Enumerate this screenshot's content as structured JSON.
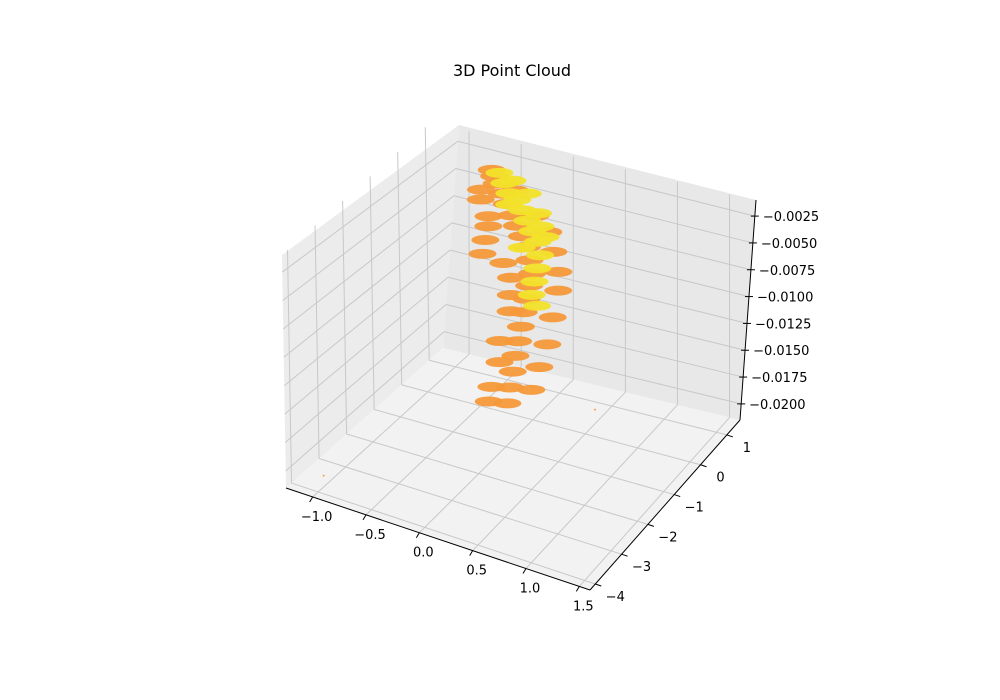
{
  "chart_data": {
    "type": "scatter",
    "projection": "3d",
    "title": "3D Point Cloud",
    "xlabel": "",
    "ylabel": "",
    "zlabel": "",
    "x_ticks": [
      "−1.0",
      "−0.5",
      "0.0",
      "0.5",
      "1.0",
      "1.5"
    ],
    "y_ticks": [
      "−4",
      "−3",
      "−2",
      "−1",
      "0",
      "1"
    ],
    "z_ticks": [
      "−0.0025",
      "−0.0050",
      "−0.0075",
      "−0.0100",
      "−0.0125",
      "−0.0150",
      "−0.0175",
      "−0.0200"
    ],
    "xlim": [
      -1.25,
      1.6
    ],
    "ylim": [
      -4.2,
      1.5
    ],
    "zlim": [
      -0.0215,
      -0.001
    ],
    "grid": true,
    "colors": {
      "orange": "#f5993a",
      "yellow": "#f2e22a",
      "pane": "#f2f2f2",
      "grid": "#c8c8c8"
    },
    "series": [
      {
        "color": "orange",
        "points": [
          {
            "x": -0.6,
            "y": 0.8,
            "z": -0.0028
          },
          {
            "x": -0.55,
            "y": 0.7,
            "z": -0.003
          },
          {
            "x": -0.5,
            "y": 0.6,
            "z": -0.0033
          },
          {
            "x": -0.4,
            "y": 0.4,
            "z": -0.0035
          },
          {
            "x": -0.3,
            "y": 0.2,
            "z": -0.0037
          },
          {
            "x": -0.2,
            "y": 0.0,
            "z": -0.004
          },
          {
            "x": -0.1,
            "y": -0.2,
            "z": -0.0042
          },
          {
            "x": 0.0,
            "y": -0.4,
            "z": -0.0044
          },
          {
            "x": 0.1,
            "y": -0.6,
            "z": -0.0046
          },
          {
            "x": 0.2,
            "y": -0.9,
            "z": -0.0048
          },
          {
            "x": 0.3,
            "y": -1.2,
            "z": -0.005
          },
          {
            "x": 0.35,
            "y": -1.5,
            "z": -0.0052
          },
          {
            "x": 0.4,
            "y": -1.8,
            "z": -0.0055
          },
          {
            "x": 0.45,
            "y": -2.1,
            "z": -0.0058
          },
          {
            "x": 0.5,
            "y": -2.4,
            "z": -0.0062
          },
          {
            "x": 0.55,
            "y": -2.7,
            "z": -0.0066
          },
          {
            "x": 0.6,
            "y": -3.0,
            "z": -0.007
          },
          {
            "x": 0.65,
            "y": -3.3,
            "z": -0.0075
          },
          {
            "x": 0.7,
            "y": -3.6,
            "z": -0.008
          },
          {
            "x": 0.75,
            "y": -3.9,
            "z": -0.0085
          },
          {
            "x": -0.5,
            "y": 0.3,
            "z": -0.0055
          },
          {
            "x": -0.45,
            "y": 0.1,
            "z": -0.0058
          },
          {
            "x": -0.4,
            "y": -0.2,
            "z": -0.0062
          },
          {
            "x": -0.35,
            "y": -0.5,
            "z": -0.0066
          },
          {
            "x": -0.1,
            "y": -0.7,
            "z": -0.0063
          },
          {
            "x": 0.05,
            "y": -1.0,
            "z": -0.0065
          },
          {
            "x": 0.15,
            "y": -1.4,
            "z": -0.0068
          },
          {
            "x": 0.25,
            "y": -1.8,
            "z": -0.007
          },
          {
            "x": -0.65,
            "y": 0.6,
            "z": -0.0042
          },
          {
            "x": -0.6,
            "y": 0.4,
            "z": -0.0045
          },
          {
            "x": -0.3,
            "y": 0.5,
            "z": -0.0032
          },
          {
            "x": 0.0,
            "y": 0.1,
            "z": -0.0038
          },
          {
            "x": 0.2,
            "y": -0.2,
            "z": -0.004
          },
          {
            "x": 0.35,
            "y": -0.6,
            "z": -0.0044
          },
          {
            "x": 0.5,
            "y": -1.0,
            "z": -0.0048
          },
          {
            "x": 0.6,
            "y": -1.4,
            "z": -0.0052
          },
          {
            "x": 0.7,
            "y": -2.0,
            "z": -0.0058
          },
          {
            "x": 0.8,
            "y": -2.6,
            "z": -0.0064
          },
          {
            "x": 0.85,
            "y": -3.1,
            "z": -0.007
          },
          {
            "x": 0.9,
            "y": -3.6,
            "z": -0.0076
          },
          {
            "x": 0.5,
            "y": -3.5,
            "z": -0.0088
          },
          {
            "x": 0.55,
            "y": -3.8,
            "z": -0.0092
          },
          {
            "x": 0.35,
            "y": -2.6,
            "z": -0.0074
          },
          {
            "x": 0.45,
            "y": -3.0,
            "z": -0.008
          },
          {
            "x": 1.2,
            "y": -2.4,
            "z": -0.0115
          },
          {
            "x": -1.0,
            "y": -3.8,
            "z": -0.0205
          }
        ]
      },
      {
        "color": "yellow",
        "points": [
          {
            "x": -0.5,
            "y": 0.7,
            "z": -0.0026
          },
          {
            "x": -0.4,
            "y": 0.5,
            "z": -0.0028
          },
          {
            "x": -0.3,
            "y": 0.3,
            "z": -0.003
          },
          {
            "x": -0.2,
            "y": 0.2,
            "z": -0.0031
          },
          {
            "x": -0.1,
            "y": 0.0,
            "z": -0.0033
          },
          {
            "x": 0.0,
            "y": -0.2,
            "z": -0.0035
          },
          {
            "x": 0.1,
            "y": -0.4,
            "z": -0.0037
          },
          {
            "x": 0.2,
            "y": -0.6,
            "z": -0.0039
          },
          {
            "x": 0.3,
            "y": -0.9,
            "z": -0.0041
          },
          {
            "x": 0.35,
            "y": -1.2,
            "z": -0.0044
          },
          {
            "x": 0.4,
            "y": -1.5,
            "z": -0.0047
          },
          {
            "x": 0.45,
            "y": -1.8,
            "z": -0.005
          },
          {
            "x": -0.35,
            "y": 0.6,
            "z": -0.0027
          },
          {
            "x": -0.15,
            "y": 0.4,
            "z": -0.0029
          },
          {
            "x": 0.05,
            "y": 0.0,
            "z": -0.0032
          },
          {
            "x": 0.15,
            "y": -0.3,
            "z": -0.0034
          },
          {
            "x": 0.25,
            "y": -0.5,
            "z": -0.0036
          },
          {
            "x": -0.25,
            "y": 0.1,
            "z": -0.0034
          },
          {
            "x": 0.1,
            "y": -0.8,
            "z": -0.0042
          },
          {
            "x": 0.55,
            "y": -2.0,
            "z": -0.0052
          }
        ]
      }
    ]
  }
}
